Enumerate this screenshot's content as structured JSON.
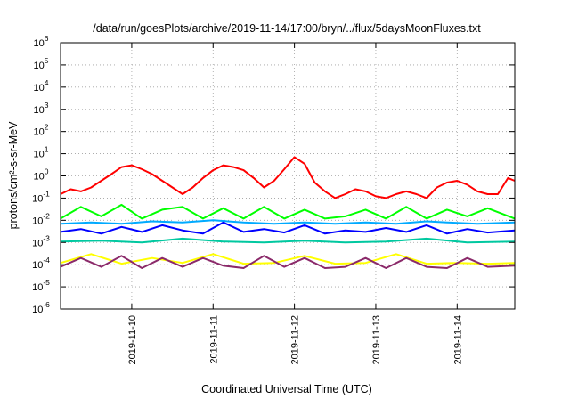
{
  "chart_data": {
    "type": "line",
    "title": "/data/run/goesPlots/archive/2019-11-14/17:00/bryn/../flux/5daysMoonFluxes.txt",
    "xlabel": "Coordinated Universal Time (UTC)",
    "ylabel": "protons/cm²-s-sr-MeV",
    "yscale": "log",
    "ylim": [
      1e-06,
      1000000.0
    ],
    "xlim": [
      "2019-11-09T03:00",
      "2019-11-14T17:00"
    ],
    "grid": true,
    "x_ticks": [
      {
        "label": "2019-11-10",
        "value": "2019-11-10T00:00"
      },
      {
        "label": "2019-11-11",
        "value": "2019-11-11T00:00"
      },
      {
        "label": "2019-11-12",
        "value": "2019-11-12T00:00"
      },
      {
        "label": "2019-11-13",
        "value": "2019-11-13T00:00"
      },
      {
        "label": "2019-11-14",
        "value": "2019-11-14T00:00"
      }
    ],
    "y_ticks": [
      {
        "base": "10",
        "exp": "-6",
        "value": 1e-06
      },
      {
        "base": "10",
        "exp": "-5",
        "value": 1e-05
      },
      {
        "base": "10",
        "exp": "-4",
        "value": 0.0001
      },
      {
        "base": "10",
        "exp": "-3",
        "value": 0.001
      },
      {
        "base": "10",
        "exp": "-2",
        "value": 0.01
      },
      {
        "base": "10",
        "exp": "-1",
        "value": 0.1
      },
      {
        "base": "10",
        "exp": "0",
        "value": 1
      },
      {
        "base": "10",
        "exp": "1",
        "value": 10
      },
      {
        "base": "10",
        "exp": "2",
        "value": 100
      },
      {
        "base": "10",
        "exp": "3",
        "value": 1000
      },
      {
        "base": "10",
        "exp": "4",
        "value": 10000
      },
      {
        "base": "10",
        "exp": "5",
        "value": 100000
      },
      {
        "base": "10",
        "exp": "6",
        "value": 1000000
      }
    ],
    "series": [
      {
        "color": "#ff0000",
        "x": [
          "2019-11-09T03:00",
          "2019-11-09T06:00",
          "2019-11-09T09:00",
          "2019-11-09T12:00",
          "2019-11-09T15:00",
          "2019-11-09T18:00",
          "2019-11-09T21:00",
          "2019-11-10T00:00",
          "2019-11-10T03:00",
          "2019-11-10T06:00",
          "2019-11-10T09:00",
          "2019-11-10T12:00",
          "2019-11-10T15:00",
          "2019-11-10T18:00",
          "2019-11-10T21:00",
          "2019-11-11T00:00",
          "2019-11-11T03:00",
          "2019-11-11T06:00",
          "2019-11-11T09:00",
          "2019-11-11T12:00",
          "2019-11-11T15:00",
          "2019-11-11T18:00",
          "2019-11-11T21:00",
          "2019-11-12T00:00",
          "2019-11-12T03:00",
          "2019-11-12T06:00",
          "2019-11-12T09:00",
          "2019-11-12T12:00",
          "2019-11-12T15:00",
          "2019-11-12T18:00",
          "2019-11-12T21:00",
          "2019-11-13T00:00",
          "2019-11-13T03:00",
          "2019-11-13T06:00",
          "2019-11-13T09:00",
          "2019-11-13T12:00",
          "2019-11-13T15:00",
          "2019-11-13T18:00",
          "2019-11-13T21:00",
          "2019-11-14T00:00",
          "2019-11-14T03:00",
          "2019-11-14T06:00",
          "2019-11-14T09:00",
          "2019-11-14T12:00",
          "2019-11-14T15:00",
          "2019-11-14T17:00"
        ],
        "values": [
          0.15,
          0.25,
          0.2,
          0.3,
          0.6,
          1.2,
          2.5,
          3.0,
          2.0,
          1.2,
          0.6,
          0.3,
          0.15,
          0.3,
          0.8,
          1.8,
          3.0,
          2.5,
          1.8,
          0.8,
          0.3,
          0.6,
          2.0,
          7.0,
          3.5,
          0.5,
          0.2,
          0.1,
          0.15,
          0.25,
          0.2,
          0.12,
          0.1,
          0.15,
          0.2,
          0.15,
          0.1,
          0.3,
          0.5,
          0.6,
          0.4,
          0.2,
          0.15,
          0.15,
          0.8,
          0.6
        ]
      },
      {
        "color": "#00ff00",
        "x": [
          "2019-11-09T03:00",
          "2019-11-09T09:00",
          "2019-11-09T15:00",
          "2019-11-09T21:00",
          "2019-11-10T03:00",
          "2019-11-10T09:00",
          "2019-11-10T15:00",
          "2019-11-10T21:00",
          "2019-11-11T03:00",
          "2019-11-11T09:00",
          "2019-11-11T15:00",
          "2019-11-11T21:00",
          "2019-11-12T03:00",
          "2019-11-12T09:00",
          "2019-11-12T15:00",
          "2019-11-12T21:00",
          "2019-11-13T03:00",
          "2019-11-13T09:00",
          "2019-11-13T15:00",
          "2019-11-13T21:00",
          "2019-11-14T03:00",
          "2019-11-14T09:00",
          "2019-11-14T17:00"
        ],
        "values": [
          0.012,
          0.04,
          0.015,
          0.05,
          0.012,
          0.03,
          0.04,
          0.012,
          0.035,
          0.012,
          0.04,
          0.012,
          0.03,
          0.012,
          0.015,
          0.03,
          0.012,
          0.04,
          0.012,
          0.03,
          0.015,
          0.035,
          0.012
        ]
      },
      {
        "color": "#00aaff",
        "x": [
          "2019-11-09T03:00",
          "2019-11-09T12:00",
          "2019-11-09T21:00",
          "2019-11-10T06:00",
          "2019-11-10T15:00",
          "2019-11-11T00:00",
          "2019-11-11T09:00",
          "2019-11-11T18:00",
          "2019-11-12T03:00",
          "2019-11-12T12:00",
          "2019-11-12T21:00",
          "2019-11-13T06:00",
          "2019-11-13T15:00",
          "2019-11-13T21:00",
          "2019-11-14T06:00",
          "2019-11-14T17:00"
        ],
        "values": [
          0.007,
          0.008,
          0.007,
          0.009,
          0.008,
          0.01,
          0.008,
          0.007,
          0.008,
          0.007,
          0.008,
          0.007,
          0.009,
          0.008,
          0.007,
          0.008
        ]
      },
      {
        "color": "#0000ff",
        "x": [
          "2019-11-09T03:00",
          "2019-11-09T09:00",
          "2019-11-09T15:00",
          "2019-11-09T21:00",
          "2019-11-10T03:00",
          "2019-11-10T09:00",
          "2019-11-10T15:00",
          "2019-11-10T21:00",
          "2019-11-11T03:00",
          "2019-11-11T09:00",
          "2019-11-11T15:00",
          "2019-11-11T21:00",
          "2019-11-12T03:00",
          "2019-11-12T09:00",
          "2019-11-12T15:00",
          "2019-11-12T21:00",
          "2019-11-13T03:00",
          "2019-11-13T09:00",
          "2019-11-13T15:00",
          "2019-11-13T21:00",
          "2019-11-14T03:00",
          "2019-11-14T09:00",
          "2019-11-14T17:00"
        ],
        "values": [
          0.003,
          0.004,
          0.0025,
          0.005,
          0.003,
          0.006,
          0.0035,
          0.0025,
          0.008,
          0.003,
          0.004,
          0.0028,
          0.006,
          0.0025,
          0.0035,
          0.003,
          0.0045,
          0.003,
          0.006,
          0.0025,
          0.004,
          0.0028,
          0.0035
        ]
      },
      {
        "color": "#00c8a0",
        "x": [
          "2019-11-09T03:00",
          "2019-11-09T15:00",
          "2019-11-10T03:00",
          "2019-11-10T15:00",
          "2019-11-11T03:00",
          "2019-11-11T15:00",
          "2019-11-12T03:00",
          "2019-11-12T15:00",
          "2019-11-13T03:00",
          "2019-11-13T15:00",
          "2019-11-14T03:00",
          "2019-11-14T17:00"
        ],
        "values": [
          0.0011,
          0.0012,
          0.001,
          0.0015,
          0.0011,
          0.001,
          0.0012,
          0.001,
          0.0011,
          0.0015,
          0.001,
          0.0011
        ]
      },
      {
        "color": "#ffff00",
        "x": [
          "2019-11-09T03:00",
          "2019-11-09T12:00",
          "2019-11-09T21:00",
          "2019-11-10T06:00",
          "2019-11-10T15:00",
          "2019-11-11T00:00",
          "2019-11-11T09:00",
          "2019-11-11T18:00",
          "2019-11-12T03:00",
          "2019-11-12T12:00",
          "2019-11-12T21:00",
          "2019-11-13T06:00",
          "2019-11-13T15:00",
          "2019-11-14T00:00",
          "2019-11-14T09:00",
          "2019-11-14T17:00"
        ],
        "values": [
          0.00012,
          0.0003,
          0.00011,
          0.0002,
          0.00012,
          0.0003,
          0.00011,
          0.00012,
          0.00025,
          0.00011,
          0.00012,
          0.0003,
          0.00011,
          0.00012,
          0.00011,
          0.00012
        ]
      },
      {
        "color": "#8b2a6a",
        "x": [
          "2019-11-09T03:00",
          "2019-11-09T09:00",
          "2019-11-09T15:00",
          "2019-11-09T21:00",
          "2019-11-10T03:00",
          "2019-11-10T09:00",
          "2019-11-10T15:00",
          "2019-11-10T21:00",
          "2019-11-11T03:00",
          "2019-11-11T09:00",
          "2019-11-11T15:00",
          "2019-11-11T21:00",
          "2019-11-12T03:00",
          "2019-11-12T09:00",
          "2019-11-12T15:00",
          "2019-11-12T21:00",
          "2019-11-13T03:00",
          "2019-11-13T09:00",
          "2019-11-13T15:00",
          "2019-11-13T21:00",
          "2019-11-14T03:00",
          "2019-11-14T09:00",
          "2019-11-14T17:00"
        ],
        "values": [
          8e-05,
          0.0002,
          8e-05,
          0.00025,
          7e-05,
          0.0002,
          8e-05,
          0.0002,
          9e-05,
          7e-05,
          0.00025,
          8e-05,
          0.0002,
          7e-05,
          8e-05,
          0.0002,
          7e-05,
          0.0002,
          8e-05,
          7e-05,
          0.0002,
          8e-05,
          9e-05
        ]
      }
    ]
  }
}
